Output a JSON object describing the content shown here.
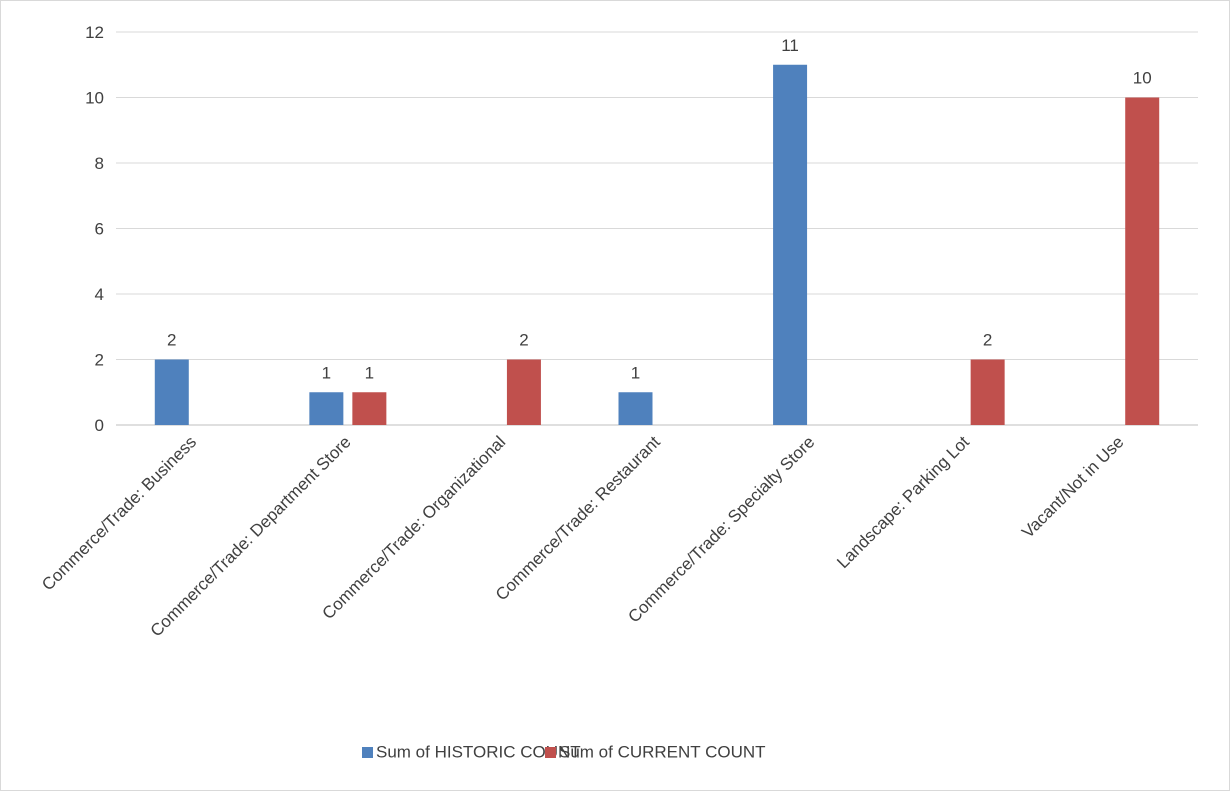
{
  "chart_data": {
    "type": "bar",
    "title": "",
    "xlabel": "",
    "ylabel": "",
    "categories": [
      "Commerce/Trade: Business",
      "Commerce/Trade: Department Store",
      "Commerce/Trade: Organizational",
      "Commerce/Trade: Restaurant",
      "Commerce/Trade: Specialty Store",
      "Landscape: Parking Lot",
      "Vacant/Not in Use"
    ],
    "series": [
      {
        "name": "Sum of HISTORIC COUNT",
        "color": "#4f81bd",
        "values": [
          2,
          1,
          null,
          1,
          11,
          null,
          null
        ]
      },
      {
        "name": "Sum of CURRENT COUNT",
        "color": "#c0504d",
        "values": [
          null,
          1,
          2,
          null,
          null,
          2,
          10
        ]
      }
    ],
    "ylim": [
      0,
      12
    ],
    "yticks": [
      "0",
      "2",
      "4",
      "6",
      "8",
      "10",
      "12"
    ],
    "grid": true,
    "data_labels": true,
    "legend_position": "bottom"
  }
}
